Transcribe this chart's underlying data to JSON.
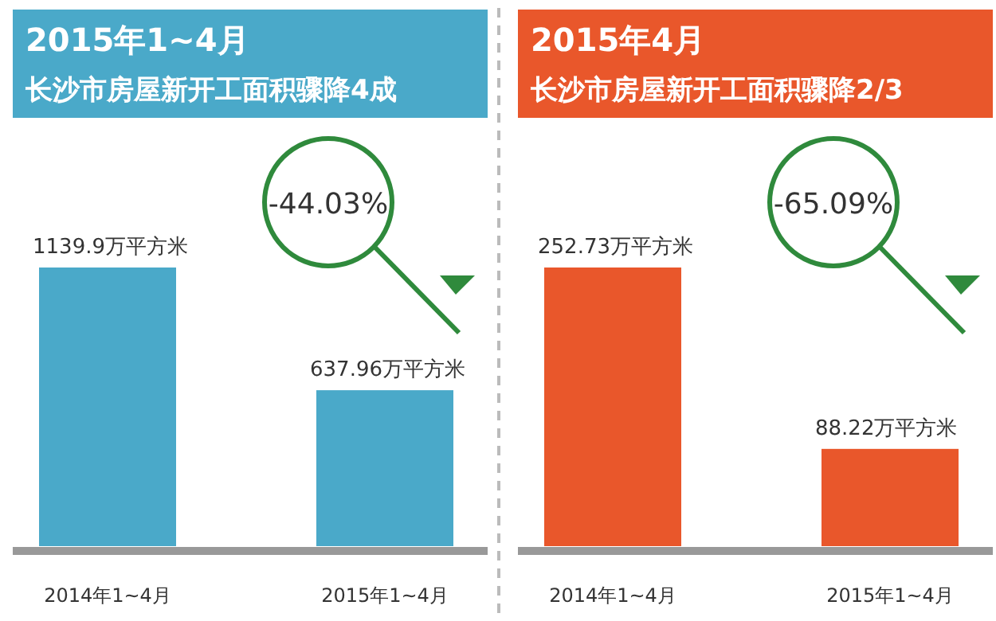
{
  "chart_data": [
    {
      "type": "bar",
      "title": "2015年1~4月",
      "subtitle": "长沙市房屋新开工面积骤降4成",
      "categories": [
        "2014年1~4月",
        "2015年1~4月"
      ],
      "values": [
        1139.9,
        637.96
      ],
      "value_labels": [
        "1139.9万平方米",
        "637.96万平方米"
      ],
      "color": "#4aa9c9",
      "annotations": [
        "-44.03%"
      ]
    },
    {
      "type": "bar",
      "title": "2015年4月",
      "subtitle": "长沙市房屋新开工面积骤降2/3",
      "categories": [
        "2014年1~4月",
        "2015年1~4月"
      ],
      "values": [
        252.73,
        88.22
      ],
      "value_labels": [
        "252.73万平方米",
        "88.22万平方米"
      ],
      "color": "#e9572b",
      "annotations": [
        "-65.09%"
      ]
    }
  ]
}
